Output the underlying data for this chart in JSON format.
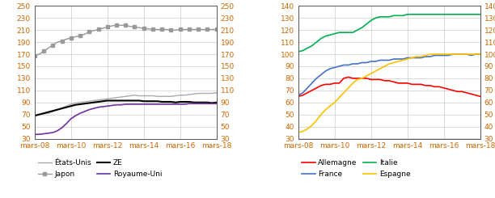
{
  "left": {
    "ylim": [
      30,
      250
    ],
    "yticks": [
      30,
      50,
      70,
      90,
      110,
      130,
      150,
      170,
      190,
      210,
      230,
      250
    ],
    "xtick_labels": [
      "mars-08",
      "mars-10",
      "mars-12",
      "mars-14",
      "mars-16",
      "mars-18"
    ],
    "series": {
      "Japon": {
        "color": "#999999",
        "linewidth": 1.0,
        "marker": "s",
        "markersize": 2.5,
        "values": [
          168,
          170,
          175,
          180,
          185,
          190,
          192,
          195,
          197,
          199,
          201,
          203,
          207,
          209,
          211,
          213,
          215,
          217,
          218,
          218,
          218,
          216,
          215,
          214,
          213,
          212,
          211,
          211,
          211,
          211,
          210,
          210,
          211,
          211,
          211,
          211,
          211,
          211,
          211,
          211,
          211
        ]
      },
      "États-Unis": {
        "color": "#aaaaaa",
        "linewidth": 1.0,
        "marker": null,
        "markersize": 0,
        "values": [
          68,
          70,
          71,
          72,
          75,
          78,
          81,
          84,
          87,
          89,
          90,
          91,
          92,
          93,
          94,
          95,
          96,
          97,
          98,
          99,
          100,
          101,
          102,
          101,
          101,
          101,
          101,
          100,
          100,
          100,
          100,
          101,
          102,
          102,
          103,
          104,
          105,
          105,
          105,
          105,
          106
        ]
      },
      "ZE": {
        "color": "#000000",
        "linewidth": 1.5,
        "marker": null,
        "markersize": 0,
        "values": [
          68,
          70,
          72,
          74,
          76,
          78,
          80,
          82,
          84,
          86,
          87,
          88,
          89,
          90,
          91,
          92,
          93,
          93,
          93,
          93,
          93,
          93,
          93,
          93,
          92,
          92,
          92,
          92,
          91,
          91,
          91,
          90,
          91,
          91,
          91,
          90,
          90,
          90,
          90,
          89,
          90
        ]
      },
      "Royaume-Uni": {
        "color": "#7030a0",
        "linewidth": 1.2,
        "marker": null,
        "markersize": 0,
        "values": [
          37,
          37,
          38,
          39,
          40,
          43,
          48,
          55,
          63,
          68,
          72,
          75,
          78,
          80,
          82,
          83,
          84,
          85,
          86,
          86,
          87,
          87,
          87,
          87,
          87,
          87,
          87,
          87,
          87,
          87,
          87,
          87,
          87,
          87,
          88,
          88,
          88,
          88,
          88,
          88,
          88
        ]
      }
    },
    "legend_order": [
      "États-Unis",
      "Japon",
      "ZE",
      "Royaume-Uni"
    ]
  },
  "right": {
    "ylim": [
      30,
      140
    ],
    "yticks": [
      30,
      40,
      50,
      60,
      70,
      80,
      90,
      100,
      110,
      120,
      130,
      140
    ],
    "xtick_labels": [
      "mars-08",
      "mars-10",
      "mars-12",
      "mars-14",
      "mars-16",
      "mars-18"
    ],
    "series": {
      "Italie": {
        "color": "#00b050",
        "linewidth": 1.2,
        "marker": null,
        "values": [
          102,
          103,
          105,
          107,
          110,
          113,
          115,
          116,
          117,
          118,
          118,
          118,
          118,
          120,
          122,
          125,
          128,
          130,
          131,
          131,
          131,
          132,
          132,
          132,
          133,
          133,
          133,
          133,
          133,
          133,
          133,
          133,
          133,
          133,
          133,
          133,
          133,
          133,
          133,
          133,
          133
        ]
      },
      "France": {
        "color": "#4472c4",
        "linewidth": 1.2,
        "marker": null,
        "values": [
          66,
          68,
          72,
          76,
          80,
          83,
          86,
          88,
          89,
          90,
          91,
          91,
          92,
          92,
          93,
          93,
          94,
          94,
          95,
          95,
          95,
          96,
          96,
          96,
          97,
          97,
          97,
          97,
          98,
          98,
          99,
          99,
          99,
          99,
          100,
          100,
          100,
          100,
          99,
          100,
          100
        ]
      },
      "Allemagne": {
        "color": "#ff0000",
        "linewidth": 1.2,
        "marker": null,
        "values": [
          65,
          66,
          68,
          70,
          72,
          74,
          75,
          75,
          76,
          76,
          80,
          81,
          80,
          80,
          80,
          80,
          79,
          79,
          79,
          78,
          78,
          77,
          76,
          76,
          76,
          75,
          75,
          75,
          74,
          74,
          73,
          73,
          72,
          71,
          70,
          69,
          69,
          68,
          67,
          66,
          65
        ]
      },
      "Espagne": {
        "color": "#ffc000",
        "linewidth": 1.2,
        "marker": null,
        "values": [
          35,
          36,
          38,
          41,
          45,
          50,
          54,
          57,
          60,
          64,
          68,
          72,
          76,
          79,
          80,
          82,
          84,
          86,
          88,
          90,
          92,
          93,
          94,
          95,
          96,
          97,
          98,
          98,
          99,
          100,
          100,
          100,
          100,
          100,
          100,
          100,
          100,
          100,
          100,
          100,
          100
        ]
      }
    },
    "legend_order": [
      "Allemagne",
      "France",
      "Italie",
      "Espagne"
    ]
  },
  "tick_color": "#cc6600",
  "tick_label_color": "#cc6600",
  "grid_color": "#cccccc",
  "background_color": "#ffffff",
  "n_points": 41,
  "fontsize_legend": 6.5,
  "fontsize_tick": 6.5
}
